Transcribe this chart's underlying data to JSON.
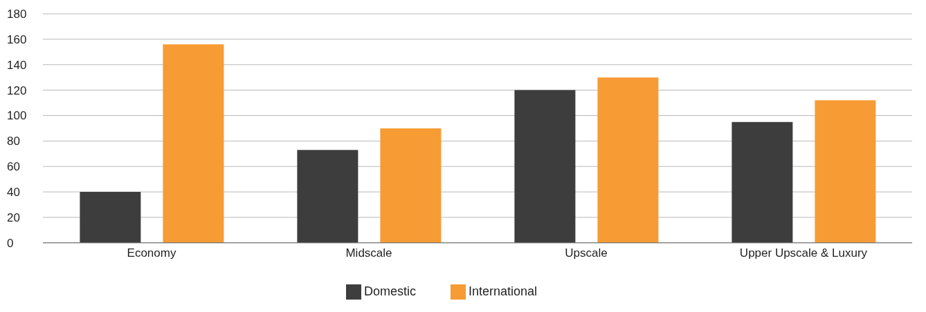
{
  "chart_data": {
    "type": "bar",
    "categories": [
      "Economy",
      "Midscale",
      "Upscale",
      "Upper Upscale & Luxury"
    ],
    "series": [
      {
        "name": "Domestic",
        "color": "#3d3d3d",
        "values": [
          40,
          73,
          120,
          95
        ]
      },
      {
        "name": "International",
        "color": "#f79b34",
        "values": [
          156,
          90,
          130,
          112
        ]
      }
    ],
    "ylim": [
      0,
      180
    ],
    "yticks": [
      0,
      20,
      40,
      60,
      80,
      100,
      120,
      140,
      160,
      180
    ],
    "grid": "y",
    "legend": "bottom"
  }
}
